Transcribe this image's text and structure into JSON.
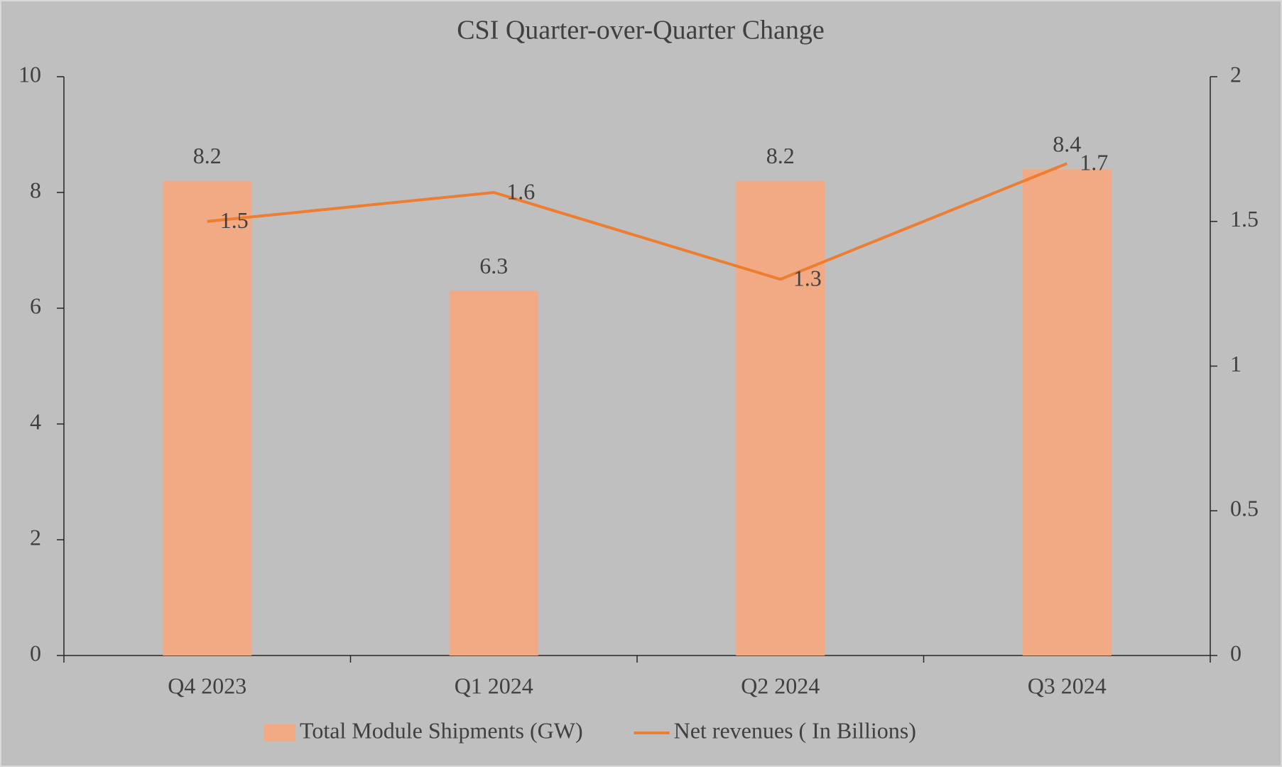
{
  "chart_data": {
    "type": "bar-line",
    "title": "CSI Quarter-over-Quarter Change",
    "categories": [
      "Q4 2023",
      "Q1 2024",
      "Q2 2024",
      "Q3 2024"
    ],
    "series": [
      {
        "name": "Total Module Shipments (GW)",
        "type": "bar",
        "color": "#f2aa84",
        "values": [
          8.2,
          6.3,
          8.2,
          8.4
        ]
      },
      {
        "name": "Net revenues ( In Billions)",
        "type": "line",
        "color": "#ed7d31",
        "axis": "y2",
        "values": [
          1.5,
          1.6,
          1.3,
          1.7
        ]
      }
    ],
    "ylim": [
      0,
      10
    ],
    "yticks": [
      0,
      2,
      4,
      6,
      8,
      10
    ],
    "y2lim": [
      0,
      2
    ],
    "y2ticks": [
      0,
      0.5,
      1,
      1.5,
      2
    ],
    "legend": "bottom"
  }
}
